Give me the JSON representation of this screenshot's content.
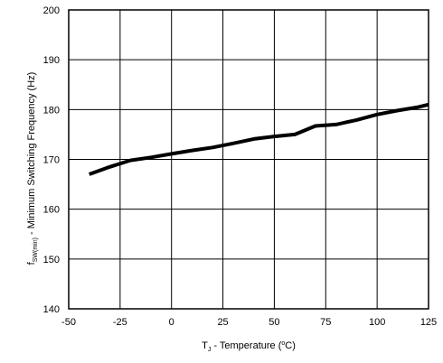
{
  "chart_data": {
    "type": "line",
    "xlabel": {
      "main": "T",
      "sub": "J",
      "rest": " - Temperature  (",
      "sup": "o",
      "end": "C)"
    },
    "ylabel": {
      "main": "f",
      "sub": "SW(min)",
      "rest": " - Minimum Switching Frequency  (Hz)"
    },
    "xlim": [
      -50,
      125
    ],
    "ylim": [
      140,
      200
    ],
    "xticks": [
      -50,
      -25,
      0,
      25,
      50,
      75,
      100,
      125
    ],
    "yticks": [
      140,
      150,
      160,
      170,
      180,
      190,
      200
    ],
    "grid": true,
    "series": [
      {
        "color": "#000000",
        "x": [
          -40,
          -30,
          -20,
          -10,
          0,
          10,
          20,
          30,
          40,
          50,
          60,
          70,
          80,
          90,
          100,
          110,
          120,
          125
        ],
        "y": [
          167.0,
          168.5,
          169.8,
          170.4,
          171.1,
          171.8,
          172.4,
          173.2,
          174.1,
          174.6,
          175.0,
          176.7,
          177.0,
          177.9,
          179.0,
          179.8,
          180.5,
          181.0
        ]
      }
    ]
  }
}
